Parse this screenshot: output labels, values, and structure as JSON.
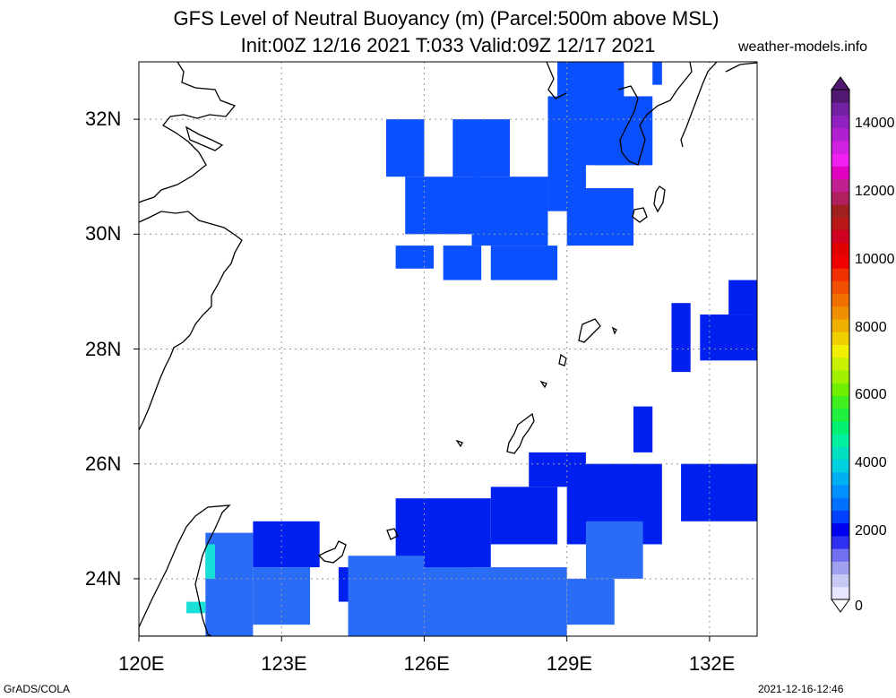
{
  "title": {
    "line1": "GFS Level of Neutral Buoyancy (m) (Parcel:500m above MSL)",
    "line2": "Init:00Z 12/16 2021 T:033 Valid:09Z 12/17 2021"
  },
  "credit": "weather-models.info",
  "footer": {
    "left": "GrADS/COLA",
    "right": "2021-12-16-12:46"
  },
  "map": {
    "lon_range": [
      120,
      133
    ],
    "lat_range": [
      23,
      33
    ],
    "lon_ticks": [
      {
        "value": 120,
        "label": "120E"
      },
      {
        "value": 123,
        "label": "123E"
      },
      {
        "value": 126,
        "label": "126E"
      },
      {
        "value": 129,
        "label": "129E"
      },
      {
        "value": 132,
        "label": "132E"
      }
    ],
    "lat_ticks": [
      {
        "value": 32,
        "label": "32N"
      },
      {
        "value": 30,
        "label": "30N"
      },
      {
        "value": 28,
        "label": "28N"
      },
      {
        "value": 26,
        "label": "26N"
      },
      {
        "value": 24,
        "label": "24N"
      }
    ],
    "grid": true
  },
  "colorbar": {
    "min": 0,
    "max": 15000,
    "labels": [
      {
        "value": 0,
        "label": "0"
      },
      {
        "value": 2000,
        "label": "2000"
      },
      {
        "value": 4000,
        "label": "4000"
      },
      {
        "value": 6000,
        "label": "6000"
      },
      {
        "value": 8000,
        "label": "8000"
      },
      {
        "value": 10000,
        "label": "10000"
      },
      {
        "value": 12000,
        "label": "12000"
      },
      {
        "value": 14000,
        "label": "14000"
      }
    ],
    "colors": [
      "#e6e6ff",
      "#c8c8f5",
      "#a0a0f0",
      "#7070f0",
      "#3030f0",
      "#0000f0",
      "#0040ff",
      "#0070ff",
      "#0090ff",
      "#00b0f0",
      "#00d0e0",
      "#00e0c0",
      "#00f0a0",
      "#00f070",
      "#20f040",
      "#40f020",
      "#70f000",
      "#a0f000",
      "#c8f000",
      "#f0f000",
      "#f0d000",
      "#f0b000",
      "#f09000",
      "#f07000",
      "#f05000",
      "#f03000",
      "#f00000",
      "#e00000",
      "#d00020",
      "#b81818",
      "#a02020",
      "#b02060",
      "#c02090",
      "#e000c0",
      "#f020f0",
      "#d020e0",
      "#b020d0",
      "#9020c0",
      "#7020a0",
      "#501870"
    ]
  },
  "data_cells": {
    "deep_blue": [
      [
        126.6,
        32.0,
        127.8,
        31.0
      ],
      [
        125.2,
        32.0,
        126.0,
        31.0
      ],
      [
        127.0,
        31.0,
        128.6,
        29.8
      ],
      [
        125.6,
        31.0,
        127.2,
        30.0
      ],
      [
        128.6,
        32.4,
        129.4,
        30.4
      ],
      [
        128.8,
        33.0,
        130.2,
        31.2
      ],
      [
        129.6,
        32.4,
        130.8,
        31.2
      ],
      [
        127.4,
        29.8,
        128.8,
        29.2
      ],
      [
        126.4,
        29.8,
        127.2,
        29.2
      ],
      [
        125.4,
        29.8,
        126.2,
        29.4
      ],
      [
        129.0,
        30.8,
        130.4,
        29.8
      ],
      [
        130.8,
        33.0,
        131.0,
        32.6
      ]
    ],
    "blue": [
      [
        125.4,
        25.4,
        127.4,
        24.2
      ],
      [
        127.4,
        25.6,
        128.8,
        24.6
      ],
      [
        129.0,
        26.0,
        131.0,
        24.6
      ],
      [
        128.2,
        26.2,
        129.4,
        25.6
      ],
      [
        131.4,
        26.0,
        133.0,
        25.0
      ],
      [
        125.6,
        24.2,
        127.0,
        23.4
      ],
      [
        122.4,
        25.0,
        123.8,
        24.2
      ],
      [
        124.2,
        24.2,
        125.0,
        23.6
      ],
      [
        130.4,
        27.0,
        130.8,
        26.2
      ],
      [
        131.2,
        28.8,
        131.6,
        27.6
      ],
      [
        131.8,
        28.6,
        133.0,
        27.8
      ],
      [
        132.4,
        29.2,
        133.0,
        28.6
      ]
    ],
    "mid_blue": [
      [
        124.4,
        24.4,
        126.0,
        23.0
      ],
      [
        126.0,
        24.2,
        129.0,
        23.0
      ],
      [
        129.0,
        24.0,
        130.0,
        23.2
      ],
      [
        121.4,
        24.8,
        122.4,
        23.0
      ],
      [
        122.4,
        24.2,
        123.6,
        23.2
      ],
      [
        129.4,
        25.0,
        130.6,
        24.0
      ]
    ],
    "cyan": [
      [
        121.4,
        24.6,
        121.6,
        24.0
      ],
      [
        121.0,
        23.6,
        121.4,
        23.4
      ]
    ]
  }
}
